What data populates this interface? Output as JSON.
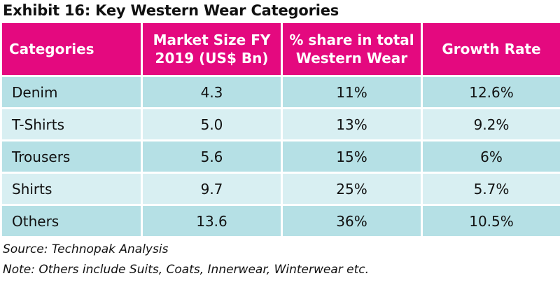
{
  "title": "Exhibit 16: Key Western Wear Categories",
  "source": "Source: Technopak Analysis",
  "note": "Note: Others include Suits, Coats, Innerwear, Winterwear etc.",
  "colors": {
    "header_bg": "#e4097f",
    "header_text": "#ffffff",
    "row_odd_bg": "#b5e0e5",
    "row_even_bg": "#d8eff2"
  },
  "chart_data": {
    "type": "table",
    "title": "Exhibit 16: Key Western Wear Categories",
    "columns": [
      [
        "Categories"
      ],
      [
        "Market Size FY",
        "2019 (US$ Bn)"
      ],
      [
        "% share in total",
        "Western Wear"
      ],
      [
        "Growth Rate"
      ]
    ],
    "rows": [
      [
        "Denim",
        "4.3",
        "11%",
        "12.6%"
      ],
      [
        "T-Shirts",
        "5.0",
        "13%",
        "9.2%"
      ],
      [
        "Trousers",
        "5.6",
        "15%",
        "6%"
      ],
      [
        "Shirts",
        "9.7",
        "25%",
        "5.7%"
      ],
      [
        "Others",
        "13.6",
        "36%",
        "10.5%"
      ]
    ]
  }
}
